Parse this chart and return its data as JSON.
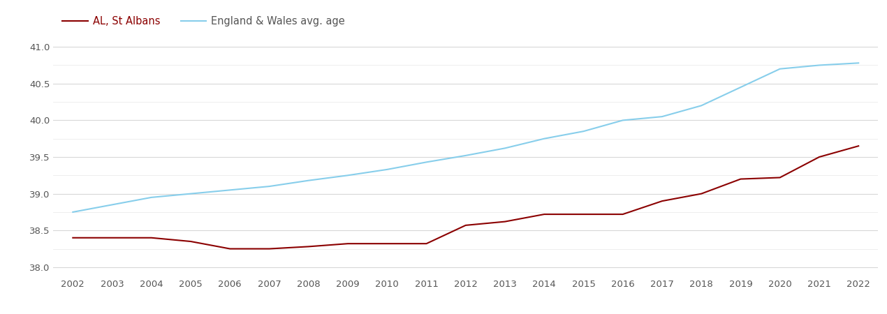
{
  "years": [
    2002,
    2003,
    2004,
    2005,
    2006,
    2007,
    2008,
    2009,
    2010,
    2011,
    2012,
    2013,
    2014,
    2015,
    2016,
    2017,
    2018,
    2019,
    2020,
    2021,
    2022
  ],
  "st_albans": [
    38.4,
    38.4,
    38.4,
    38.35,
    38.25,
    38.25,
    38.28,
    38.32,
    38.32,
    38.32,
    38.57,
    38.62,
    38.72,
    38.72,
    38.72,
    38.9,
    39.0,
    39.2,
    39.22,
    39.5,
    39.65
  ],
  "england_wales": [
    38.75,
    38.85,
    38.95,
    39.0,
    39.05,
    39.1,
    39.18,
    39.25,
    39.33,
    39.43,
    39.52,
    39.62,
    39.75,
    39.85,
    40.0,
    40.05,
    40.2,
    40.45,
    40.7,
    40.75,
    40.78
  ],
  "st_albans_color": "#8B0000",
  "england_wales_color": "#87CEEB",
  "st_albans_label": "AL, St Albans",
  "england_wales_label": "England & Wales avg. age",
  "ylim": [
    37.875,
    41.125
  ],
  "yticks": [
    38.0,
    38.5,
    39.0,
    39.5,
    40.0,
    40.5,
    41.0
  ],
  "yticks_minor": [
    38.25,
    38.75,
    39.25,
    39.75,
    40.25,
    40.75
  ],
  "background_color": "#ffffff",
  "grid_color": "#d8d8d8",
  "grid_color_minor": "#ebebeb",
  "line_width": 1.5,
  "legend_fontsize": 10.5,
  "tick_fontsize": 9.5,
  "tick_color": "#555555"
}
